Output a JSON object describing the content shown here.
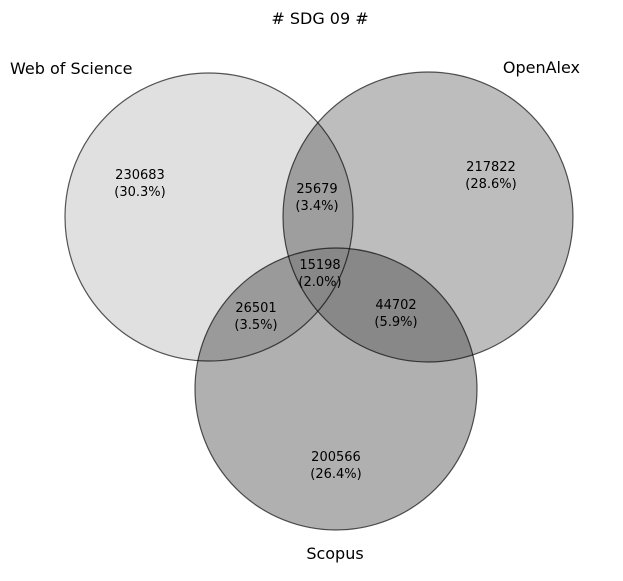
{
  "title": "# SDG 09 #",
  "sets": [
    {
      "name": "Web of Science",
      "fill": "#e0e0e0"
    },
    {
      "name": "OpenAlex",
      "fill": "#bdbdbd"
    },
    {
      "name": "Scopus",
      "fill": "#b0b0b0"
    }
  ],
  "regions": [
    {
      "id": "wos_only",
      "count": "230683",
      "percent": "(30.3%)"
    },
    {
      "id": "openalex_only",
      "count": "217822",
      "percent": "(28.6%)"
    },
    {
      "id": "scopus_only",
      "count": "200566",
      "percent": "(26.4%)"
    },
    {
      "id": "wos_openalex",
      "count": "25679",
      "percent": "(3.4%)"
    },
    {
      "id": "wos_scopus",
      "count": "26501",
      "percent": "(3.5%)"
    },
    {
      "id": "openalex_scopus",
      "count": "44702",
      "percent": "(5.9%)"
    },
    {
      "id": "all_three",
      "count": "15198",
      "percent": "(2.0%)"
    }
  ],
  "colors": {
    "edge": "#000000",
    "wos_openalex": "#9e9e9e",
    "wos_scopus": "#9a9a9a",
    "openalex_scopus": "#888888",
    "all_three": "#888888"
  }
}
